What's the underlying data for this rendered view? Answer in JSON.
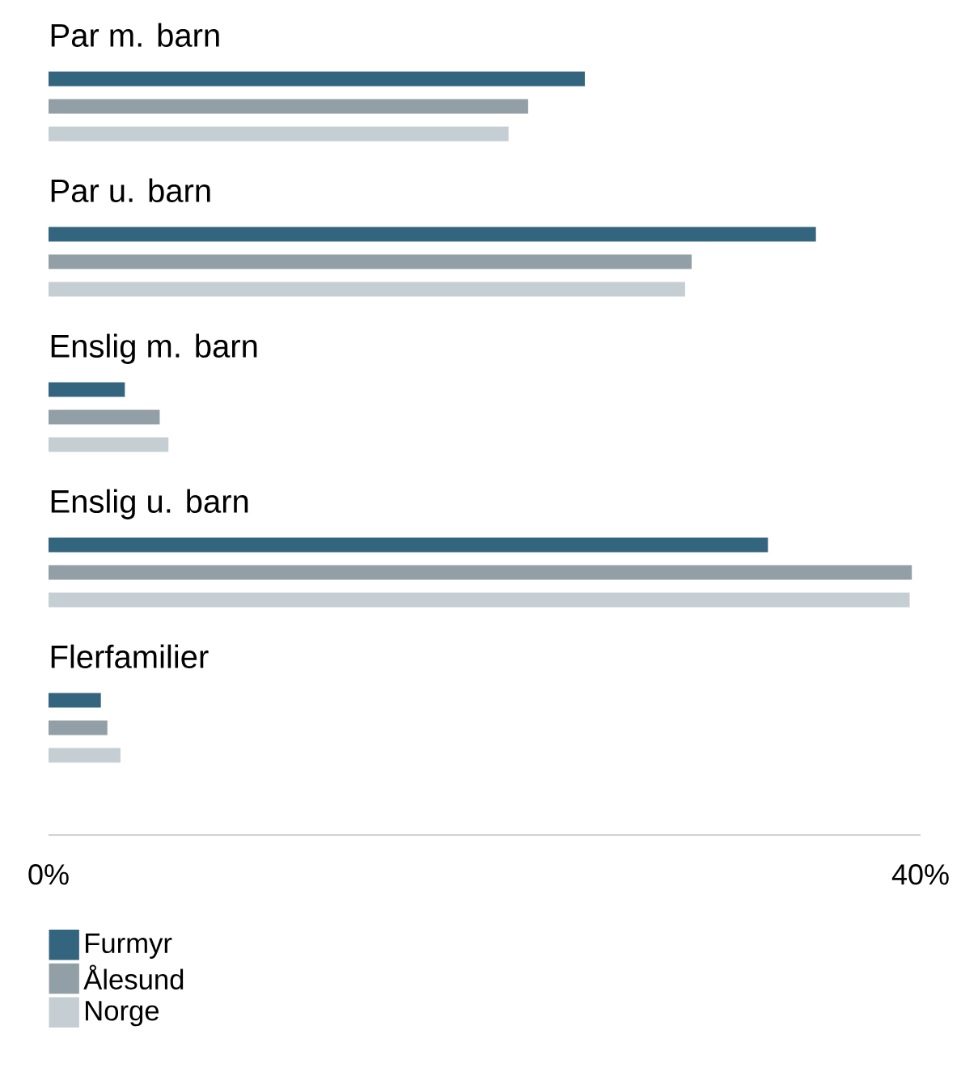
{
  "chart_data": {
    "type": "bar",
    "orientation": "horizontal",
    "categories": [
      "Par m. barn",
      "Par u. barn",
      "Enslig m. barn",
      "Enslig u. barn",
      "Flerfamilier"
    ],
    "series": [
      {
        "name": "Furmyr",
        "color": "#34657f",
        "values": [
          24.6,
          35.2,
          3.5,
          33.0,
          2.4
        ]
      },
      {
        "name": "Ålesund",
        "color": "#939fa6",
        "values": [
          22.0,
          29.5,
          5.1,
          39.6,
          2.7
        ]
      },
      {
        "name": "Norge",
        "color": "#c5ced3",
        "values": [
          21.1,
          29.2,
          5.5,
          39.5,
          3.3
        ]
      }
    ],
    "xlim": [
      0,
      40
    ],
    "xticks": [
      {
        "value": 0,
        "label": "0%"
      },
      {
        "value": 40,
        "label": "40%"
      }
    ],
    "grid": false,
    "legend": "bottom left"
  }
}
